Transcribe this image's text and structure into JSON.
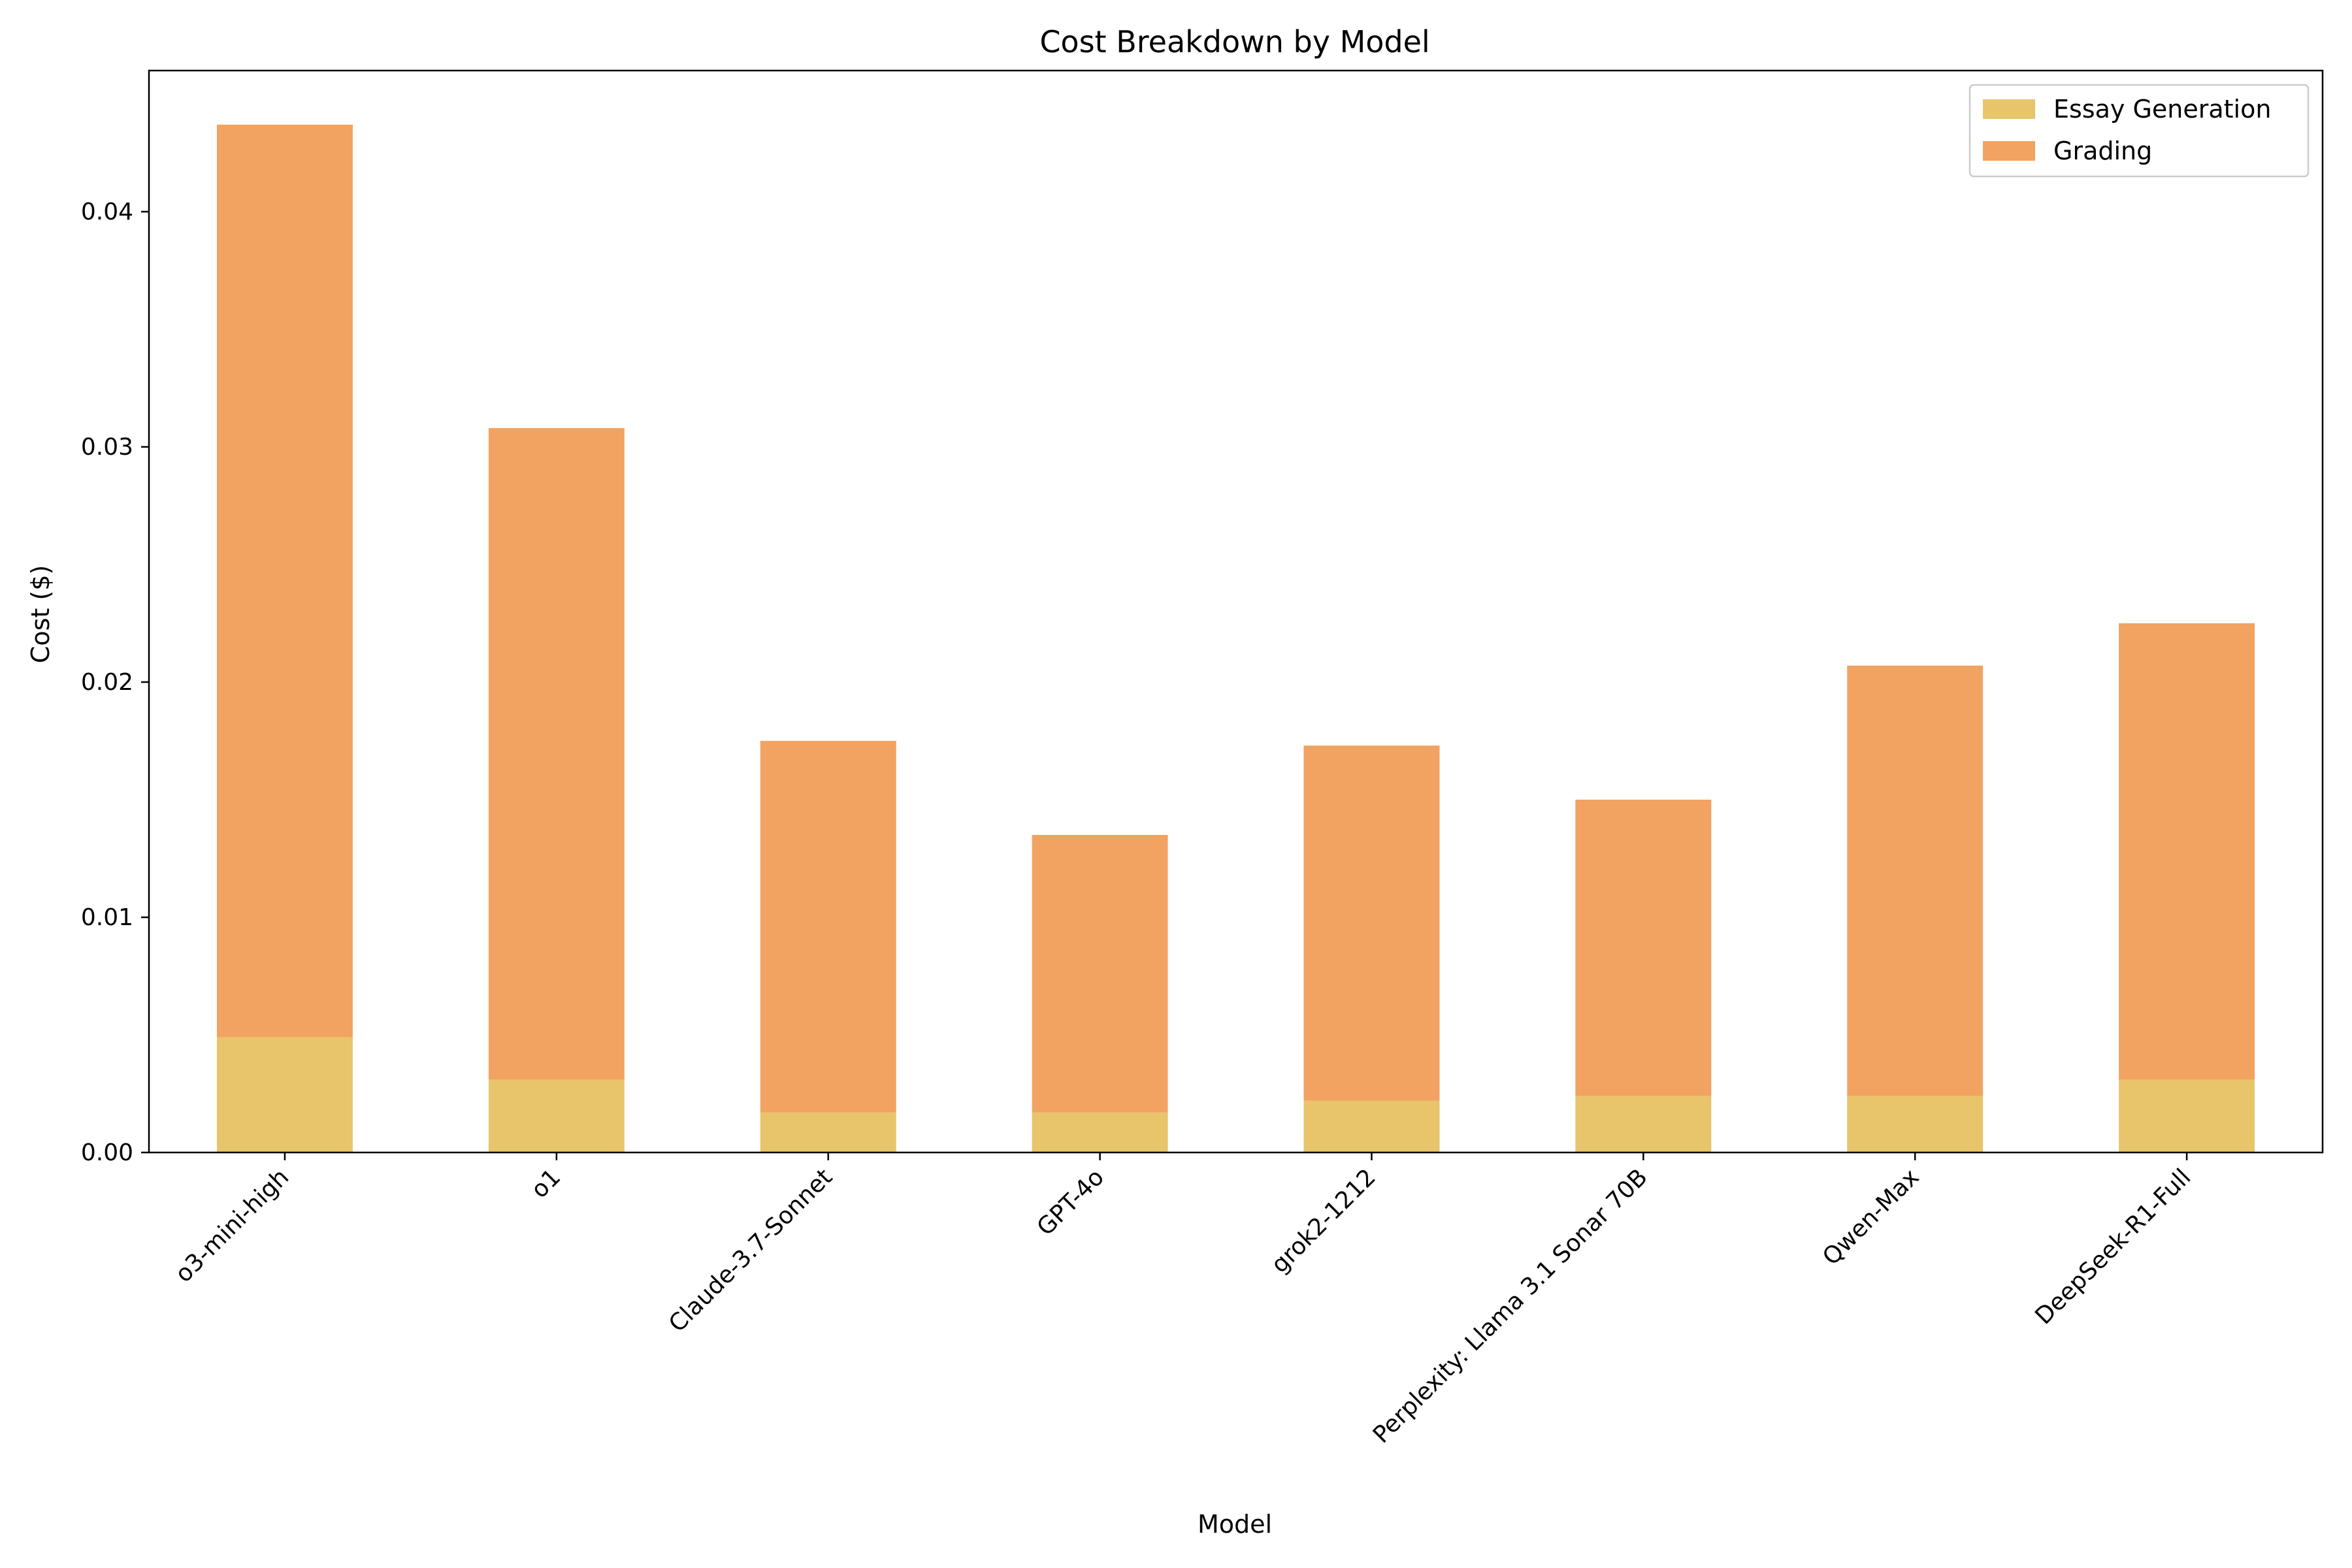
{
  "chart_data": {
    "type": "bar",
    "stacked": true,
    "title": "Cost Breakdown by Model",
    "xlabel": "Model",
    "ylabel": "Cost ($)",
    "ylim": [
      0,
      0.046
    ],
    "yticks": [
      "0.00",
      "0.01",
      "0.02",
      "0.03",
      "0.04"
    ],
    "ytick_values": [
      0,
      0.01,
      0.02,
      0.03,
      0.04
    ],
    "grid": false,
    "legend_position": "top-right",
    "categories": [
      "o3-mini-high",
      "o1",
      "Claude-3.7-Sonnet",
      "GPT-4o",
      "grok2-1212",
      "Perplexity: Llama 3.1 Sonar 70B",
      "Qwen-Max",
      "DeepSeek-R1-Full"
    ],
    "series": [
      {
        "name": "Essay Generation",
        "color": "#e8c46a",
        "values": [
          0.0049,
          0.0031,
          0.0017,
          0.0017,
          0.0022,
          0.0024,
          0.0024,
          0.0031
        ]
      },
      {
        "name": "Grading",
        "color": "#f2a261",
        "values": [
          0.0388,
          0.0277,
          0.0158,
          0.0118,
          0.0151,
          0.0126,
          0.0183,
          0.0194
        ]
      }
    ]
  }
}
